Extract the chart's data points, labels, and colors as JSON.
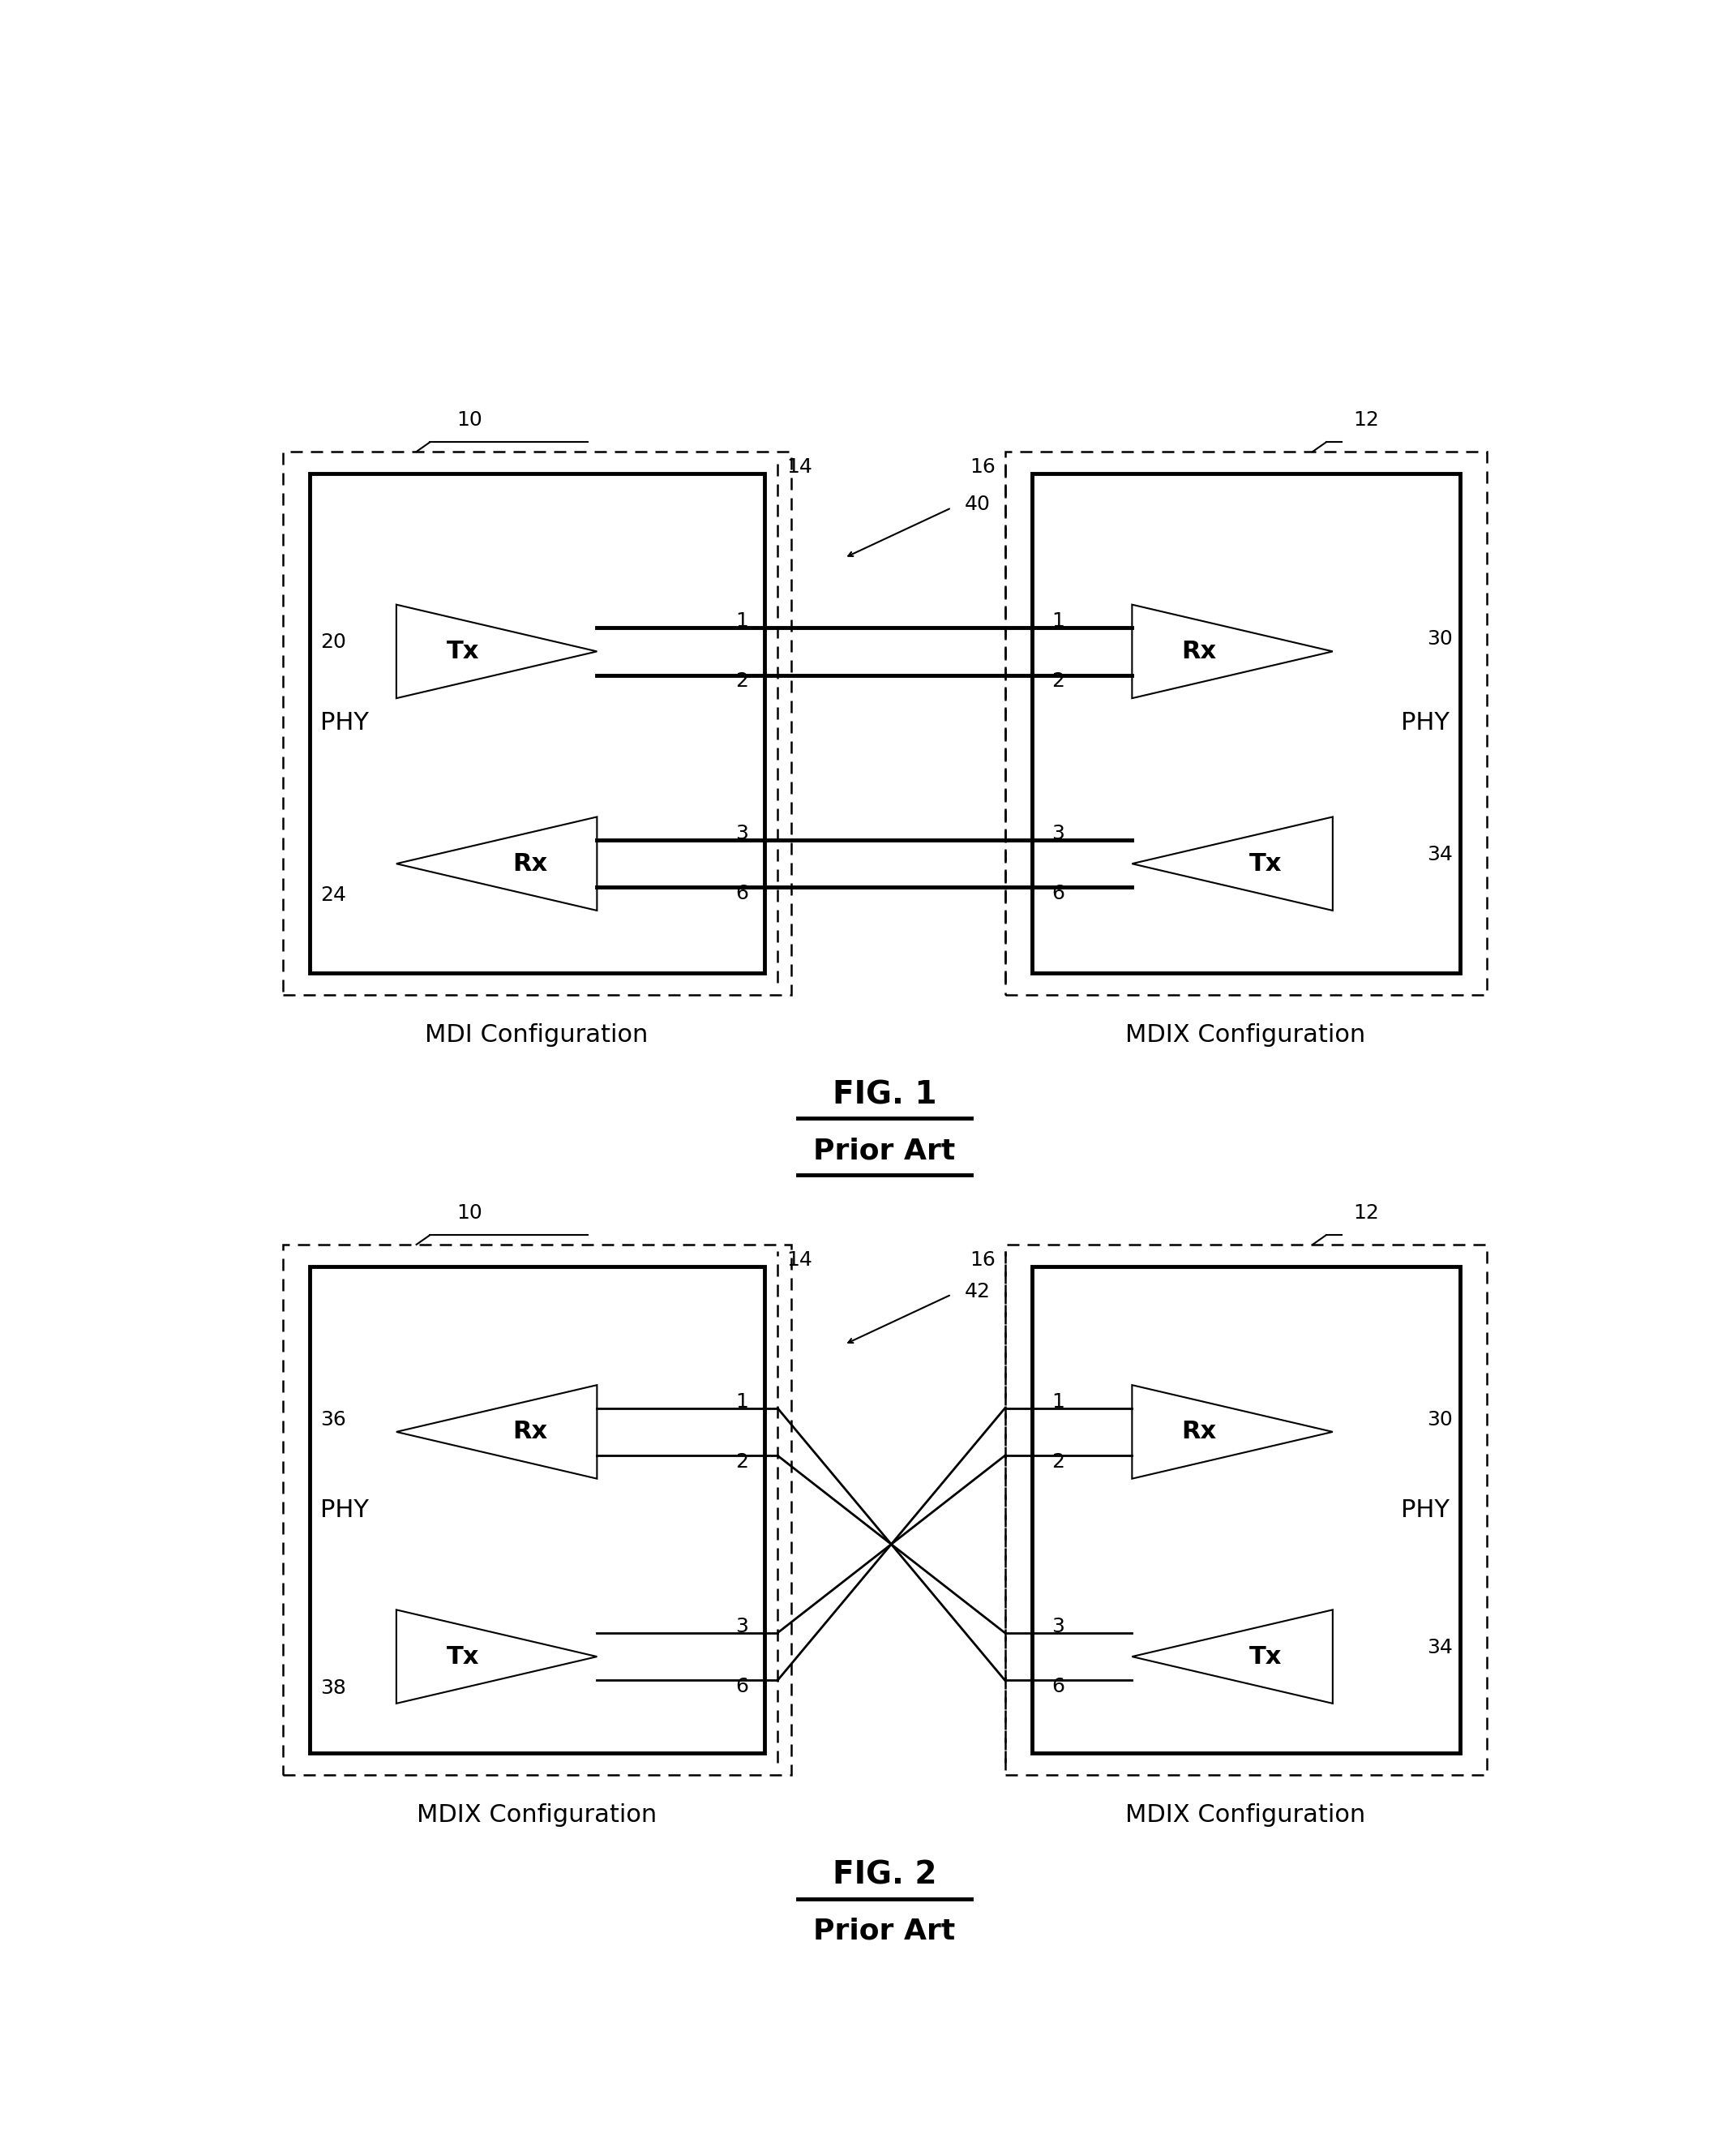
{
  "fig_width": 21.29,
  "fig_height": 26.59,
  "bg_color": "#ffffff",
  "line_color": "#000000",
  "thick_lw": 3.5,
  "thin_lw": 1.5,
  "dash_lw": 1.8,
  "font_size_label": 22,
  "font_size_num": 18,
  "font_size_fig": 28,
  "font_size_config": 22,
  "fig1_title": "FIG. 1",
  "fig1_subtitle": "Prior Art",
  "fig2_title": "FIG. 2",
  "fig2_subtitle": "Prior Art",
  "mdi_config": "MDI Configuration",
  "mdix_config": "MDIX Configuration",
  "mdix_config2": "MDIX Configuration"
}
